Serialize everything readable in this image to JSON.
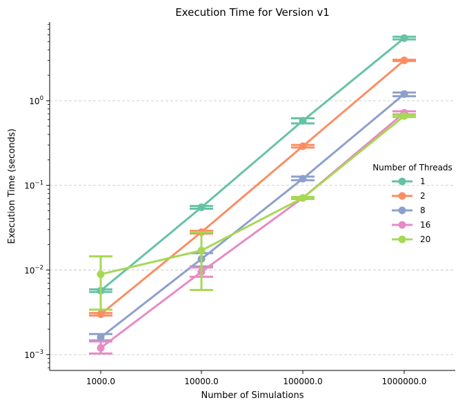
{
  "chart_data": {
    "type": "line",
    "title": "Execution Time for Version v1",
    "xlabel": "Number of Simulations",
    "ylabel": "Execution Time (seconds)",
    "x_scale": "categorical",
    "y_scale": "log",
    "categories": [
      "1000.0",
      "10000.0",
      "100000.0",
      "1000000.0"
    ],
    "ylim": [
      0.00065,
      8.5
    ],
    "y_ticks": [
      {
        "value": 0.001,
        "base": "10",
        "exp": "−3"
      },
      {
        "value": 0.01,
        "base": "10",
        "exp": "−2"
      },
      {
        "value": 0.1,
        "base": "10",
        "exp": "−1"
      },
      {
        "value": 1,
        "base": "10",
        "exp": "0"
      }
    ],
    "grid": {
      "y": true,
      "style": "dashed"
    },
    "legend": {
      "title": "Number of Threads",
      "placement": "center-right"
    },
    "series": [
      {
        "name": "1",
        "color": "#66c2a5",
        "values": [
          0.0057,
          0.055,
          0.58,
          5.5
        ],
        "err_low": [
          0.0055,
          0.053,
          0.54,
          5.3
        ],
        "err_high": [
          0.0059,
          0.057,
          0.62,
          5.7
        ]
      },
      {
        "name": "2",
        "color": "#fc8d62",
        "values": [
          0.003,
          0.028,
          0.29,
          3.0
        ],
        "err_low": [
          0.0029,
          0.027,
          0.28,
          2.95
        ],
        "err_high": [
          0.0031,
          0.029,
          0.3,
          3.05
        ]
      },
      {
        "name": "8",
        "color": "#8da0cb",
        "values": [
          0.0016,
          0.0135,
          0.12,
          1.2
        ],
        "err_low": [
          0.00147,
          0.011,
          0.115,
          1.13
        ],
        "err_high": [
          0.00175,
          0.0158,
          0.127,
          1.25
        ]
      },
      {
        "name": "16",
        "color": "#e78ac3",
        "values": [
          0.0012,
          0.0095,
          0.071,
          0.72
        ],
        "err_low": [
          0.00103,
          0.0083,
          0.069,
          0.69
        ],
        "err_high": [
          0.00143,
          0.0107,
          0.073,
          0.75
        ]
      },
      {
        "name": "20",
        "color": "#a6d854",
        "values": [
          0.0089,
          0.017,
          0.071,
          0.66
        ],
        "err_low": [
          0.0034,
          0.0058,
          0.069,
          0.64
        ],
        "err_high": [
          0.0145,
          0.028,
          0.073,
          0.68
        ]
      }
    ]
  }
}
